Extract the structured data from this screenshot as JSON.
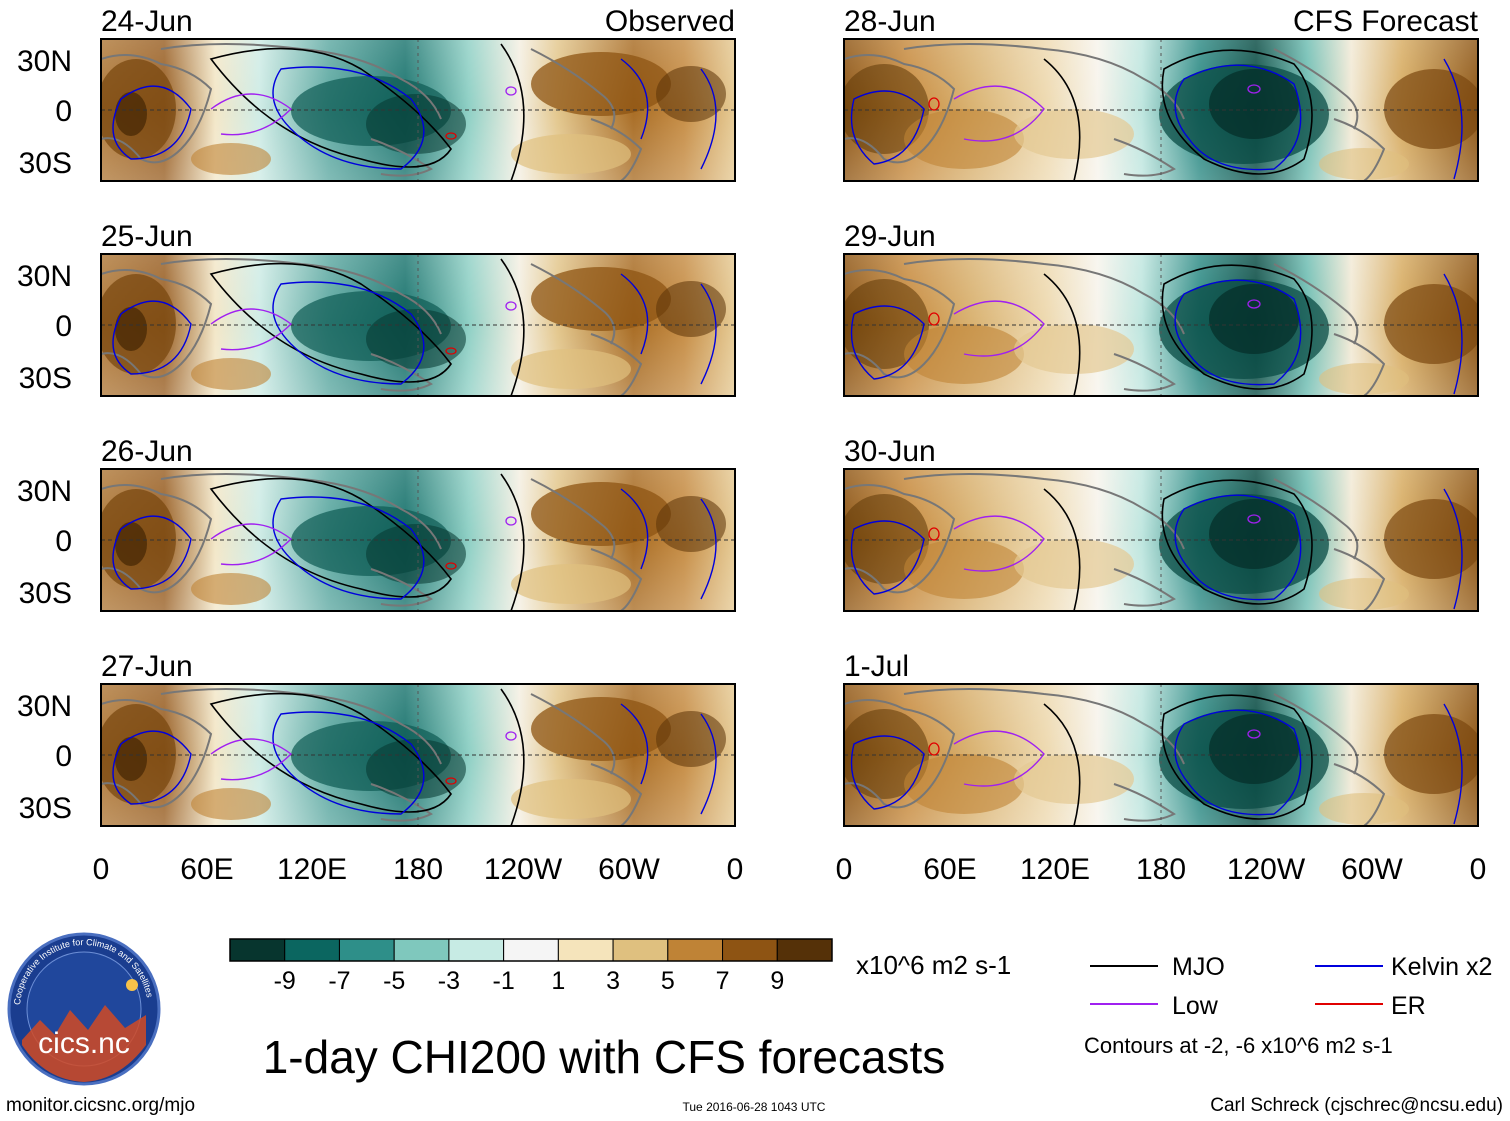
{
  "title": "1-day CHI200 with CFS forecasts",
  "units": "x10^6 m2 s-1",
  "columns": {
    "left_label": "Observed",
    "right_label": "CFS Forecast"
  },
  "left_panels": [
    {
      "date": "24-Jun"
    },
    {
      "date": "25-Jun"
    },
    {
      "date": "26-Jun"
    },
    {
      "date": "27-Jun"
    }
  ],
  "right_panels": [
    {
      "date": "28-Jun"
    },
    {
      "date": "29-Jun"
    },
    {
      "date": "30-Jun"
    },
    {
      "date": "1-Jul"
    }
  ],
  "lat_labels": [
    "30N",
    "0",
    "30S"
  ],
  "lon_labels": [
    "0",
    "60E",
    "120E",
    "180",
    "120W",
    "60W",
    "0"
  ],
  "colorbar": {
    "colors": [
      "#07352e",
      "#0b6660",
      "#2e8f89",
      "#7fc8bd",
      "#c7ebe4",
      "#f5f5f5",
      "#f5e4bb",
      "#dfc07f",
      "#bf8336",
      "#8e5413",
      "#553108"
    ],
    "tick_labels": [
      "-9",
      "-7",
      "-5",
      "-3",
      "-1",
      "1",
      "3",
      "5",
      "7",
      "9"
    ]
  },
  "legend": {
    "items": [
      {
        "label": "MJO",
        "color": "#000000"
      },
      {
        "label": "Kelvin x2",
        "color": "#0000dd"
      },
      {
        "label": "Low",
        "color": "#a020f0"
      },
      {
        "label": "ER",
        "color": "#e00000"
      }
    ],
    "note": "Contours at -2, -6 x10^6 m2 s-1"
  },
  "logo": {
    "text": "cics.nc",
    "ring_text": "Cooperative Institute for Climate and Satellites"
  },
  "footer": {
    "left": "monitor.cicsnc.org/mjo",
    "center": "Tue 2016-06-28 1043 UTC",
    "right": "Carl Schreck (cjschrec@ncsu.edu)"
  }
}
